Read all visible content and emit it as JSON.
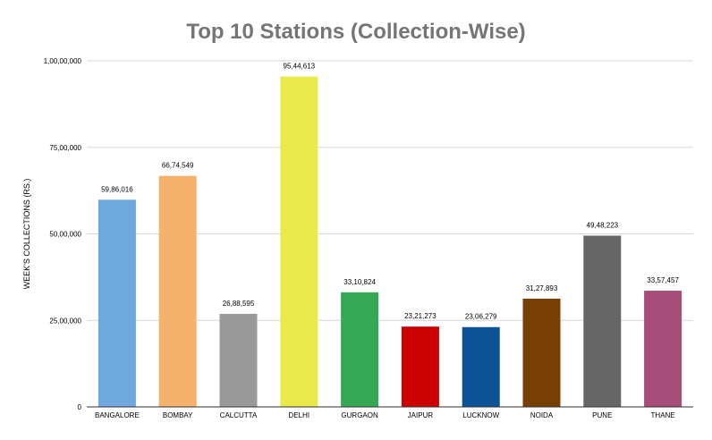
{
  "chart_data": {
    "type": "bar",
    "title": "Top 10 Stations (Collection-Wise)",
    "ylabel": "WEEK'S COLLECTIONS (RS.)",
    "xlabel": "",
    "categories": [
      "BANGALORE",
      "BOMBAY",
      "CALCUTTA",
      "DELHI",
      "GURGAON",
      "JAIPUR",
      "LUCKNOW",
      "NOIDA",
      "PUNE",
      "THANE"
    ],
    "values": [
      5986016,
      6674549,
      2688595,
      9544613,
      3310824,
      2321273,
      2306279,
      3127893,
      4948223,
      3357457
    ],
    "value_labels": [
      "59,86,016",
      "66,74,549",
      "26,88,595",
      "95,44,613",
      "33,10,824",
      "23,21,273",
      "23,06,279",
      "31,27,893",
      "49,48,223",
      "33,57,457"
    ],
    "colors": [
      "#6fa8dc",
      "#f6b26b",
      "#999999",
      "#e9e94c",
      "#34a853",
      "#cc0000",
      "#0b5394",
      "#783f04",
      "#666666",
      "#a64d79"
    ],
    "ylim": [
      0,
      10000000
    ],
    "yticks": [
      0,
      2500000,
      5000000,
      7500000,
      10000000
    ],
    "ytick_labels": [
      "0",
      "25,00,000",
      "50,00,000",
      "75,00,000",
      "1,00,00,000"
    ],
    "grid": true,
    "legend": "none"
  }
}
